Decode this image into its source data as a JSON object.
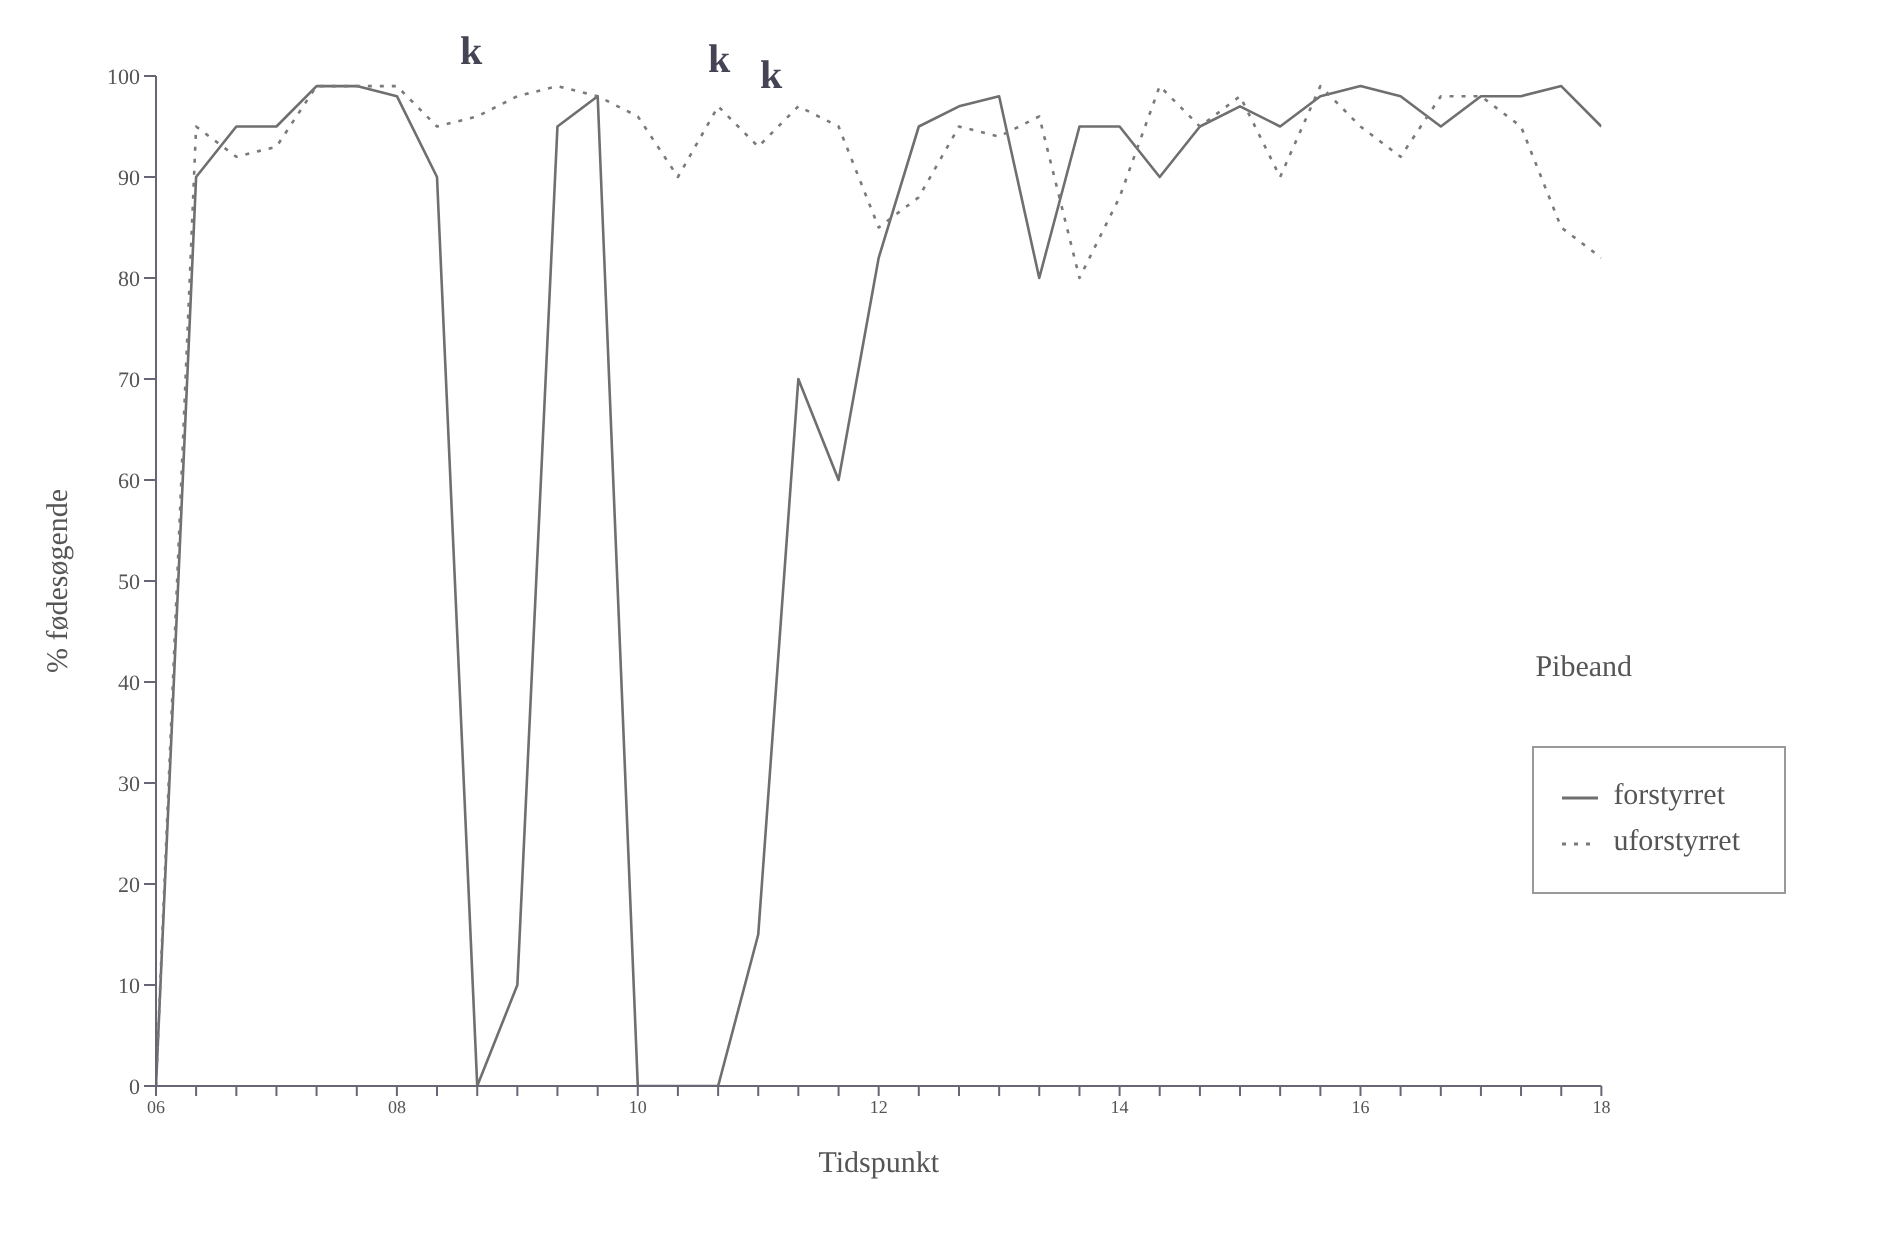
{
  "chart_data": {
    "type": "line",
    "xlabel": "Tidspunkt",
    "ylabel": "% fødesøgende",
    "legend_title": "Pibeand",
    "legend": "center right",
    "marker": "none",
    "grid": false,
    "xlim": [
      6,
      18
    ],
    "ylim": [
      0,
      100
    ],
    "yticks": [
      0,
      10,
      20,
      30,
      40,
      50,
      60,
      70,
      80,
      90,
      100
    ],
    "xticks": [
      {
        "value": 6,
        "label": "06"
      },
      {
        "value": 6.333,
        "label": null
      },
      {
        "value": 6.667,
        "label": null
      },
      {
        "value": 7,
        "label": null
      },
      {
        "value": 7.333,
        "label": null
      },
      {
        "value": 7.667,
        "label": null
      },
      {
        "value": 8,
        "label": "08"
      },
      {
        "value": 8.333,
        "label": null
      },
      {
        "value": 8.667,
        "label": null
      },
      {
        "value": 9,
        "label": null
      },
      {
        "value": 9.333,
        "label": null
      },
      {
        "value": 9.667,
        "label": null
      },
      {
        "value": 10,
        "label": "10"
      },
      {
        "value": 10.333,
        "label": null
      },
      {
        "value": 10.667,
        "label": null
      },
      {
        "value": 11,
        "label": null
      },
      {
        "value": 11.333,
        "label": null
      },
      {
        "value": 11.667,
        "label": null
      },
      {
        "value": 12,
        "label": "12"
      },
      {
        "value": 12.333,
        "label": null
      },
      {
        "value": 12.667,
        "label": null
      },
      {
        "value": 13,
        "label": null
      },
      {
        "value": 13.333,
        "label": null
      },
      {
        "value": 13.667,
        "label": null
      },
      {
        "value": 14,
        "label": "14"
      },
      {
        "value": 14.333,
        "label": null
      },
      {
        "value": 14.667,
        "label": null
      },
      {
        "value": 15,
        "label": null
      },
      {
        "value": 15.333,
        "label": null
      },
      {
        "value": 15.667,
        "label": null
      },
      {
        "value": 16,
        "label": "16"
      },
      {
        "value": 16.333,
        "label": null
      },
      {
        "value": 16.667,
        "label": null
      },
      {
        "value": 17,
        "label": null
      },
      {
        "value": 17.333,
        "label": null
      },
      {
        "value": 17.667,
        "label": null
      },
      {
        "value": 18,
        "label": "18"
      }
    ],
    "x": [
      6,
      6.333,
      6.667,
      7,
      7.333,
      7.667,
      8,
      8.333,
      8.667,
      9,
      9.333,
      9.667,
      10,
      10.333,
      10.667,
      11,
      11.333,
      11.667,
      12,
      12.333,
      12.667,
      13,
      13.333,
      13.667,
      14,
      14.333,
      14.667,
      15,
      15.333,
      15.667,
      16,
      16.333,
      16.667,
      17,
      17.333,
      17.667,
      18
    ],
    "series": [
      {
        "name": "forstyrret",
        "color": "#6f6f6f",
        "line_style": "solid",
        "values": [
          0,
          90,
          95,
          95,
          99,
          99,
          98,
          90,
          0,
          10,
          95,
          98,
          0,
          0,
          0,
          15,
          70,
          60,
          82,
          95,
          97,
          98,
          80,
          95,
          95,
          90,
          95,
          97,
          95,
          98,
          99,
          98,
          95,
          98,
          98,
          99,
          95
        ]
      },
      {
        "name": "uforstyrret",
        "color": "#7a7a7a",
        "line_style": "dotted",
        "values": [
          0,
          95,
          92,
          93,
          99,
          99,
          99,
          95,
          96,
          98,
          99,
          98,
          96,
          90,
          97,
          93,
          97,
          95,
          85,
          88,
          95,
          94,
          96,
          80,
          88,
          99,
          95,
          98,
          90,
          99,
          95,
          92,
          98,
          98,
          95,
          85,
          82
        ]
      }
    ],
    "annotations": [
      "k",
      "k",
      "k"
    ]
  }
}
